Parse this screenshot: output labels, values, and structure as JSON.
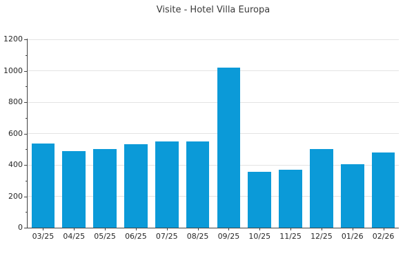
{
  "chart_data": {
    "type": "bar",
    "title": "Visite - Hotel Villa Europa",
    "categories": [
      "03/25",
      "04/25",
      "05/25",
      "06/25",
      "07/25",
      "08/25",
      "09/25",
      "10/25",
      "11/25",
      "12/25",
      "01/26",
      "02/26"
    ],
    "values": [
      535,
      490,
      500,
      530,
      550,
      550,
      1020,
      355,
      370,
      500,
      405,
      480
    ],
    "xlabel": "",
    "ylabel": "",
    "ylim": [
      0,
      1200
    ],
    "yticks": [
      0,
      200,
      400,
      600,
      800,
      1000,
      1200
    ],
    "ytick_minor_step": 100,
    "grid": "horizontal-major",
    "legend": "none",
    "colors": {
      "bar": "#0b9ad8",
      "grid": "#e3e3e3",
      "spine": "#404040",
      "tick": "#404040",
      "tick_label": "#262626",
      "title": "#3a3a3a",
      "background": "#ffffff"
    }
  }
}
